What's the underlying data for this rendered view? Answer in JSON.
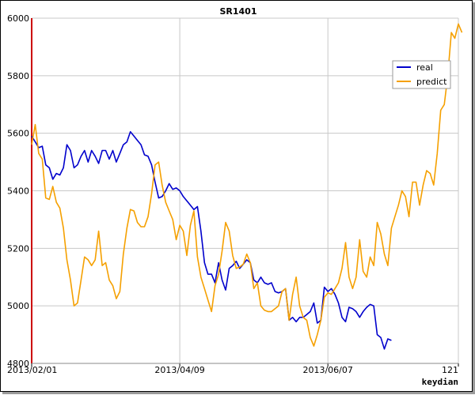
{
  "chart_data": {
    "type": "line",
    "title": "SR1401",
    "xlabel": "",
    "ylabel": "",
    "ylim": [
      4800,
      6000
    ],
    "yticks": [
      4800,
      5000,
      5200,
      5400,
      5600,
      5800,
      6000
    ],
    "xticks": [
      "2013/02/01",
      "2013/04/09",
      "2013/06/07",
      "121"
    ],
    "x_range": [
      0,
      121
    ],
    "xtick_positions": [
      0,
      42,
      84,
      121
    ],
    "grid": true,
    "legend_position": "top-right",
    "series": [
      {
        "name": "real",
        "color": "#0000cc",
        "values": [
          5590,
          5570,
          5550,
          5555,
          5490,
          5480,
          5440,
          5460,
          5455,
          5480,
          5560,
          5540,
          5480,
          5490,
          5520,
          5540,
          5500,
          5540,
          5520,
          5495,
          5540,
          5540,
          5510,
          5540,
          5500,
          5530,
          5560,
          5570,
          5605,
          5590,
          5575,
          5560,
          5525,
          5520,
          5490,
          5430,
          5375,
          5380,
          5400,
          5425,
          5405,
          5410,
          5400,
          5380,
          5365,
          5350,
          5335,
          5345,
          5260,
          5150,
          5110,
          5110,
          5080,
          5150,
          5090,
          5055,
          5130,
          5140,
          5155,
          5130,
          5145,
          5160,
          5150,
          5090,
          5080,
          5100,
          5080,
          5075,
          5080,
          5050,
          5045,
          5050,
          5060,
          4950,
          4960,
          4945,
          4960,
          4960,
          4970,
          4980,
          5010,
          4940,
          4950,
          5065,
          5050,
          5060,
          5040,
          5010,
          4960,
          4945,
          4995,
          4990,
          4980,
          4960,
          4980,
          4995,
          5005,
          5000,
          4900,
          4890,
          4850,
          4885,
          4880
        ]
      },
      {
        "name": "predict",
        "color": "#f5a000",
        "values": [
          5560,
          5630,
          5530,
          5510,
          5375,
          5370,
          5415,
          5360,
          5340,
          5270,
          5160,
          5090,
          5000,
          5010,
          5090,
          5170,
          5160,
          5140,
          5160,
          5260,
          5140,
          5150,
          5090,
          5070,
          5025,
          5050,
          5180,
          5270,
          5335,
          5330,
          5290,
          5275,
          5275,
          5310,
          5390,
          5490,
          5500,
          5420,
          5360,
          5330,
          5300,
          5230,
          5280,
          5260,
          5175,
          5280,
          5330,
          5170,
          5100,
          5060,
          5020,
          4980,
          5070,
          5110,
          5190,
          5290,
          5260,
          5175,
          5130,
          5135,
          5145,
          5180,
          5150,
          5060,
          5080,
          5000,
          4985,
          4980,
          4980,
          4990,
          5000,
          5050,
          5060,
          4950,
          5040,
          5100,
          5000,
          4960,
          4950,
          4890,
          4860,
          4900,
          4950,
          5030,
          5045,
          5040,
          5060,
          5080,
          5130,
          5220,
          5100,
          5060,
          5100,
          5230,
          5120,
          5100,
          5170,
          5140,
          5290,
          5250,
          5180,
          5140,
          5270,
          5310,
          5350,
          5400,
          5380,
          5310,
          5430,
          5430,
          5350,
          5420,
          5470,
          5460,
          5420,
          5530,
          5680,
          5700,
          5800,
          5950,
          5930,
          5980,
          5950
        ]
      }
    ],
    "watermark": "keydian"
  }
}
